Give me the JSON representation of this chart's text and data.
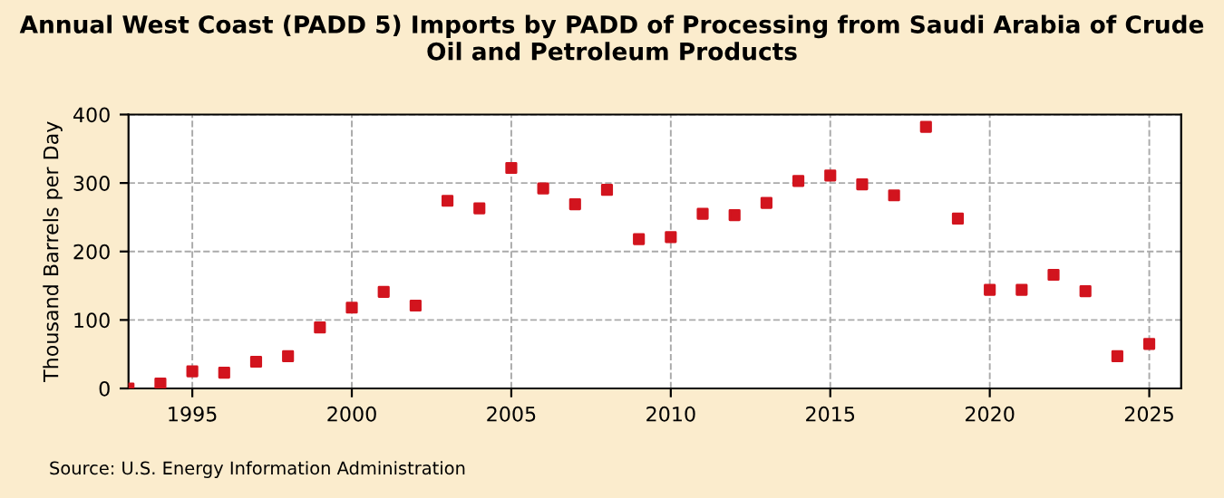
{
  "chart_data": {
    "type": "scatter",
    "title": "Annual West Coast (PADD 5) Imports by PADD of Processing from Saudi Arabia of Crude Oil and Petroleum Products",
    "ylabel": "Thousand Barrels per Day",
    "x": [
      1993,
      1994,
      1995,
      1996,
      1997,
      1998,
      1999,
      2000,
      2001,
      2002,
      2003,
      2004,
      2005,
      2006,
      2007,
      2008,
      2009,
      2010,
      2011,
      2012,
      2013,
      2014,
      2015,
      2016,
      2017,
      2018,
      2019,
      2020,
      2021,
      2022,
      2023,
      2024,
      2025
    ],
    "series": [
      {
        "color": "#d2141e",
        "values": [
          0,
          7,
          25,
          23,
          39,
          47,
          89,
          118,
          141,
          121,
          274,
          263,
          322,
          292,
          269,
          290,
          218,
          221,
          255,
          253,
          271,
          303,
          311,
          298,
          282,
          382,
          248,
          144,
          144,
          166,
          142,
          47,
          65
        ]
      }
    ],
    "xlim": [
      1993,
      2026
    ],
    "xticks": [
      1995,
      2000,
      2005,
      2010,
      2015,
      2020,
      2025
    ],
    "ylim": [
      0,
      400
    ],
    "yticks": [
      0,
      100,
      200,
      300,
      400
    ],
    "grid": true,
    "marker": "square",
    "annotations": [
      "Source: U.S. Energy Information Administration"
    ]
  }
}
